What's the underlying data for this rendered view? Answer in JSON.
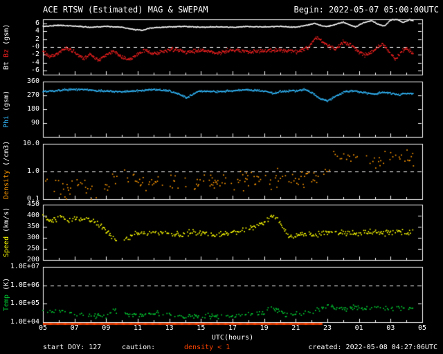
{
  "header": {
    "title": "ACE RTSW (Estimated) MAG & SWEPAM",
    "begin_label": "Begin: 2022-05-07 05:00:00UTC"
  },
  "footer": {
    "start_doy": "start DOY: 127",
    "caution_label": "caution:",
    "caution_value": "density < 1",
    "created": "created: 2022-05-08 04:27:06UTC"
  },
  "colors": {
    "background": "#000000",
    "axis": "#ffffff",
    "bt": "#ffffff",
    "bz": "#ff2222",
    "phi": "#33bbff",
    "density": "#ff9900",
    "speed": "#ffff00",
    "temp": "#00cc33",
    "caution": "#ff4400"
  },
  "xaxis": {
    "label": "UTC(hours)",
    "domain": [
      5,
      29
    ],
    "ticks": [
      {
        "t": 5,
        "label": "05"
      },
      {
        "t": 7,
        "label": "07"
      },
      {
        "t": 9,
        "label": "09"
      },
      {
        "t": 11,
        "label": "11"
      },
      {
        "t": 13,
        "label": "13"
      },
      {
        "t": 15,
        "label": "15"
      },
      {
        "t": 17,
        "label": "17"
      },
      {
        "t": 19,
        "label": "19"
      },
      {
        "t": 21,
        "label": "21"
      },
      {
        "t": 23,
        "label": "23"
      },
      {
        "t": 25,
        "label": "01"
      },
      {
        "t": 27,
        "label": "03"
      },
      {
        "t": 29,
        "label": "05"
      }
    ]
  },
  "chart_data": [
    {
      "name": "bt-bz-panel",
      "type": "line",
      "ylabel_parts": [
        {
          "text": "Bt ",
          "color": "#ffffff"
        },
        {
          "text": "Bz ",
          "color": "#ff2222"
        },
        {
          "text": "(gsm)",
          "color": "#ffffff"
        }
      ],
      "ylim": [
        -7,
        7
      ],
      "log": false,
      "dashed_at": 0,
      "yticks": [
        {
          "v": 6,
          "label": "6"
        },
        {
          "v": 4,
          "label": "4"
        },
        {
          "v": 2,
          "label": "2"
        },
        {
          "v": 0,
          "label": "-0"
        },
        {
          "v": -2,
          "label": "-2"
        },
        {
          "v": -4,
          "label": "-4"
        },
        {
          "v": -6,
          "label": "-6"
        }
      ],
      "series": [
        {
          "name": "Bt",
          "color": "#ffffff",
          "step": 0.03,
          "keep": 1.0,
          "noise": 0.12,
          "size": 1.4,
          "x": [
            5,
            6,
            7,
            8,
            9,
            10,
            10.8,
            11.3,
            11.8,
            12.5,
            13,
            14,
            15,
            16,
            17,
            18,
            19,
            20,
            21,
            21.8,
            22.2,
            22.6,
            23,
            23.4,
            24,
            24.4,
            24.8,
            25.3,
            25.8,
            26.2,
            26.6,
            27,
            27.4,
            27.8,
            28.2,
            28.45
          ],
          "y": [
            5.2,
            5.5,
            5.3,
            5.0,
            5.2,
            5.0,
            4.4,
            4.2,
            4.8,
            5.0,
            5.1,
            5.2,
            5.0,
            5.1,
            5.0,
            5.2,
            5.1,
            5.2,
            5.0,
            5.6,
            6.0,
            5.4,
            5.2,
            5.6,
            6.3,
            5.6,
            5.1,
            6.2,
            6.6,
            5.8,
            5.3,
            6.8,
            7.0,
            6.2,
            6.9,
            6.6
          ]
        },
        {
          "name": "Bz",
          "color": "#ff2222",
          "step": 0.03,
          "keep": 0.95,
          "noise": 0.5,
          "size": 1.4,
          "x": [
            5,
            5.5,
            6,
            6.5,
            7,
            7.5,
            8,
            8.5,
            9,
            9.5,
            10,
            10.5,
            11,
            11.5,
            12,
            12.5,
            13,
            13.5,
            14,
            15,
            16,
            17,
            18,
            19,
            20,
            21,
            21.7,
            22,
            22.3,
            22.7,
            23,
            23.5,
            24,
            24.5,
            25,
            25.5,
            26,
            26.5,
            27,
            27.3,
            27.7,
            28,
            28.45
          ],
          "y": [
            -1.2,
            -2.6,
            -1.5,
            -0.3,
            -1.2,
            -3.0,
            -1.8,
            -3.4,
            -2.0,
            -1.0,
            -2.6,
            -3.2,
            -1.8,
            -0.8,
            -1.8,
            -1.2,
            -0.8,
            -0.4,
            -1.4,
            -0.8,
            -1.4,
            -0.8,
            -1.2,
            -1.0,
            -0.8,
            -1.2,
            -0.4,
            1.0,
            2.6,
            1.2,
            0.4,
            -0.6,
            1.4,
            0.4,
            -1.2,
            -2.2,
            -0.6,
            0.8,
            -1.6,
            -3.2,
            -1.0,
            -0.4,
            -1.8
          ]
        }
      ]
    },
    {
      "name": "phi-panel",
      "type": "line",
      "ylabel_parts": [
        {
          "text": "Phi ",
          "color": "#33bbff"
        },
        {
          "text": "(gsm)",
          "color": "#ffffff"
        }
      ],
      "ylim": [
        0,
        360
      ],
      "log": false,
      "dashed_at": null,
      "yticks": [
        {
          "v": 360,
          "label": "360"
        },
        {
          "v": 270,
          "label": "270"
        },
        {
          "v": 180,
          "label": "180"
        },
        {
          "v": 90,
          "label": "90"
        }
      ],
      "series": [
        {
          "name": "Phi",
          "color": "#33bbff",
          "step": 0.03,
          "keep": 1.0,
          "noise": 6,
          "size": 1.4,
          "x": [
            5,
            6,
            7,
            8,
            9,
            10,
            11,
            12,
            13,
            13.6,
            14.1,
            14.6,
            15,
            16,
            17,
            18,
            19,
            19.6,
            20,
            21,
            21.6,
            22,
            22.5,
            23,
            23.5,
            24,
            24.5,
            25,
            25.5,
            26,
            26.5,
            27,
            27.5,
            28,
            28.45
          ],
          "y": [
            295,
            302,
            310,
            304,
            298,
            294,
            300,
            308,
            300,
            278,
            255,
            284,
            298,
            294,
            300,
            306,
            298,
            283,
            294,
            300,
            310,
            288,
            250,
            234,
            262,
            290,
            300,
            294,
            284,
            279,
            290,
            284,
            274,
            284,
            280
          ]
        }
      ]
    },
    {
      "name": "density-panel",
      "type": "scatter",
      "ylabel_parts": [
        {
          "text": "Density ",
          "color": "#ff9900"
        },
        {
          "text": "(/cm3)",
          "color": "#ffffff"
        }
      ],
      "ylim": [
        0.1,
        10.0
      ],
      "log": true,
      "dashed_at": 1.0,
      "yticks": [
        {
          "v": 10.0,
          "label": "10.0"
        },
        {
          "v": 1.0,
          "label": "1.0"
        },
        {
          "v": 0.1,
          "label": "0.1"
        }
      ],
      "series": [
        {
          "name": "Density",
          "color": "#ff9900",
          "step": 0.045,
          "keep": 0.38,
          "noise": 0.3,
          "size": 1.7,
          "gaps": [
            [
              9.7,
              10.15
            ]
          ],
          "x": [
            5,
            5.5,
            6,
            6.5,
            7,
            7.5,
            8,
            8.5,
            9,
            9.5,
            10,
            10.5,
            11,
            11.5,
            12,
            12.5,
            13,
            13.5,
            14,
            14.5,
            15,
            15.5,
            16,
            16.5,
            17,
            17.5,
            18,
            18.5,
            19,
            19.5,
            20,
            20.5,
            21,
            21.5,
            22,
            22.5,
            22.8,
            23.2,
            23.6,
            24,
            24.5,
            25,
            25.5,
            26,
            26.5,
            27,
            27.5,
            28,
            28.45
          ],
          "y": [
            0.4,
            0.25,
            0.3,
            0.15,
            0.5,
            0.3,
            0.2,
            0.12,
            0.3,
            0.5,
            0.8,
            0.5,
            0.6,
            0.4,
            0.5,
            0.7,
            0.5,
            0.6,
            0.4,
            0.3,
            0.5,
            0.4,
            0.35,
            0.5,
            0.45,
            0.5,
            0.55,
            0.5,
            0.6,
            0.5,
            0.55,
            0.6,
            0.5,
            0.55,
            0.6,
            0.8,
            1.2,
            1.8,
            2.4,
            3.0,
            2.6,
            3.4,
            3.0,
            2.6,
            3.4,
            3.8,
            3.0,
            3.4,
            3.0
          ]
        }
      ]
    },
    {
      "name": "speed-panel",
      "type": "scatter",
      "ylabel_parts": [
        {
          "text": "Speed ",
          "color": "#ffff00"
        },
        {
          "text": "(km/s)",
          "color": "#ffffff"
        }
      ],
      "ylim": [
        200,
        450
      ],
      "log": false,
      "dashed_at": null,
      "yticks": [
        {
          "v": 450,
          "label": "450"
        },
        {
          "v": 400,
          "label": "400"
        },
        {
          "v": 350,
          "label": "350"
        },
        {
          "v": 300,
          "label": "300"
        },
        {
          "v": 250,
          "label": "250"
        },
        {
          "v": 200,
          "label": "200"
        }
      ],
      "series": [
        {
          "name": "Speed",
          "color": "#ffff00",
          "step": 0.05,
          "keep": 0.75,
          "noise": 13,
          "size": 1.7,
          "gaps": [
            [
              9.7,
              10.15
            ]
          ],
          "x": [
            5,
            5.4,
            5.8,
            6.2,
            6.6,
            7,
            7.4,
            7.8,
            8.2,
            8.6,
            9,
            9.4,
            9.8,
            10.2,
            10.6,
            11,
            11.5,
            12,
            12.5,
            13,
            13.5,
            14,
            14.5,
            15,
            15.5,
            16,
            16.5,
            17,
            17.5,
            18,
            18.5,
            19,
            19.4,
            19.8,
            20.2,
            20.6,
            21,
            21.5,
            22,
            22.5,
            23,
            23.5,
            24,
            24.5,
            25,
            25.5,
            26,
            26.5,
            27,
            27.5,
            28,
            28.45
          ],
          "y": [
            395,
            375,
            385,
            400,
            380,
            390,
            378,
            388,
            372,
            360,
            330,
            305,
            290,
            295,
            310,
            318,
            314,
            320,
            324,
            318,
            314,
            320,
            328,
            322,
            318,
            314,
            320,
            324,
            330,
            338,
            355,
            375,
            395,
            385,
            350,
            305,
            312,
            318,
            314,
            320,
            324,
            328,
            320,
            324,
            318,
            328,
            324,
            320,
            326,
            330,
            324,
            330
          ]
        }
      ]
    },
    {
      "name": "temp-panel",
      "type": "scatter",
      "ylabel_parts": [
        {
          "text": "Temp ",
          "color": "#00cc33"
        },
        {
          "text": "(K)",
          "color": "#ffffff"
        }
      ],
      "ylim": [
        10000,
        10000000
      ],
      "log": true,
      "dashed_at": 1000000,
      "yticks": [
        {
          "v": 10000000,
          "label": "1.0E+07"
        },
        {
          "v": 1000000,
          "label": "1.0E+06"
        },
        {
          "v": 100000,
          "label": "1.0E+05"
        },
        {
          "v": 10000,
          "label": "1.0E+04"
        }
      ],
      "series": [
        {
          "name": "Temp",
          "color": "#00cc33",
          "step": 0.05,
          "keep": 0.5,
          "noise": 0.13,
          "size": 1.7,
          "gaps": [
            [
              9.7,
              10.15
            ]
          ],
          "x": [
            5,
            5.5,
            6,
            6.5,
            7,
            7.5,
            8,
            8.5,
            9,
            9.5,
            10,
            10.5,
            11,
            11.5,
            12,
            12.5,
            13,
            14,
            15,
            16,
            17,
            18,
            19,
            19.5,
            20,
            20.5,
            21,
            21.5,
            22,
            22.5,
            23,
            23.5,
            24,
            24.5,
            25,
            25.5,
            26,
            26.5,
            27,
            27.5,
            28,
            28.45
          ],
          "y": [
            30000,
            35000,
            42000,
            32000,
            28000,
            26000,
            25000,
            22000,
            20000,
            48000,
            32000,
            26000,
            24000,
            26000,
            30000,
            26000,
            24000,
            21000,
            24000,
            20000,
            22000,
            25000,
            30000,
            58000,
            40000,
            22000,
            24000,
            28000,
            30000,
            48000,
            75000,
            58000,
            50000,
            68000,
            58000,
            50000,
            68000,
            60000,
            52000,
            60000,
            52000,
            56000
          ]
        }
      ]
    }
  ]
}
